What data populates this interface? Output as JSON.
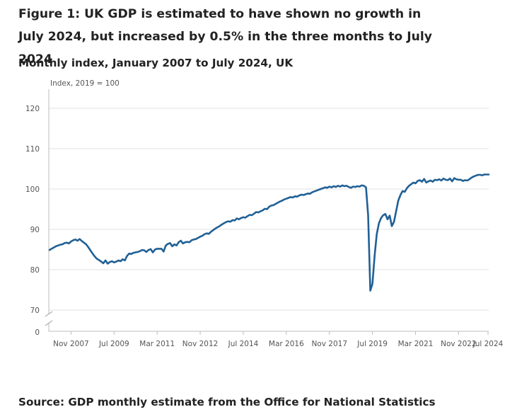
{
  "header": {
    "title": "Figure 1: UK GDP is estimated to have shown no growth in July 2024, but increased by 0.5% in the three months to July 2024",
    "subtitle": "Monthly index, January 2007 to July 2024, UK"
  },
  "footer": {
    "source": "Source: GDP monthly estimate from the Office for National Statistics"
  },
  "colors": {
    "line": "#206095",
    "grid": "#e0e0e0",
    "axis": "#bebebe"
  },
  "chart_data": {
    "type": "line",
    "title": "Figure 1: UK GDP is estimated to have shown no growth in July 2024, but increased by 0.5% in the three months to July 2024",
    "subtitle": "Monthly index, January 2007 to July 2024, UK",
    "ylabel": "Index, 2019 = 100",
    "xlabel": "",
    "ylim": [
      70,
      120
    ],
    "y_axis_break": true,
    "y_zero_label": "0",
    "yticks": [
      70,
      80,
      90,
      100,
      110,
      120
    ],
    "ytick_labels": [
      "70",
      "80",
      "90",
      "100",
      "110",
      "120"
    ],
    "xticks": [
      {
        "label": "Nov 2007",
        "month_index": 10
      },
      {
        "label": "Jul 2009",
        "month_index": 30
      },
      {
        "label": "Mar 2011",
        "month_index": 50
      },
      {
        "label": "Nov 2012",
        "month_index": 70
      },
      {
        "label": "Jul 2014",
        "month_index": 90
      },
      {
        "label": "Mar 2016",
        "month_index": 110
      },
      {
        "label": "Nov 2017",
        "month_index": 130
      },
      {
        "label": "Jul 2019",
        "month_index": 150
      },
      {
        "label": "Mar 2021",
        "month_index": 170
      },
      {
        "label": "Nov 2022",
        "month_index": 190
      },
      {
        "label": "Jul 2024",
        "month_index": 210
      }
    ],
    "grid": true,
    "legend": "none",
    "series": [
      {
        "name": "GDP monthly index",
        "start": "Jan 2007",
        "frequency": "monthly",
        "values": [
          84.9,
          85.2,
          85.5,
          85.8,
          86.0,
          86.2,
          86.3,
          86.6,
          86.7,
          86.5,
          87.0,
          87.3,
          87.5,
          87.2,
          87.6,
          87.1,
          86.7,
          86.3,
          85.6,
          84.8,
          84.0,
          83.3,
          82.7,
          82.4,
          82.0,
          81.6,
          82.3,
          81.5,
          81.9,
          82.1,
          81.8,
          82.0,
          82.3,
          82.1,
          82.6,
          82.3,
          83.4,
          84.0,
          83.9,
          84.2,
          84.3,
          84.4,
          84.6,
          84.9,
          84.8,
          84.4,
          84.9,
          85.1,
          84.3,
          85.0,
          85.2,
          85.2,
          85.2,
          84.5,
          86.0,
          86.4,
          86.6,
          85.8,
          86.3,
          86.0,
          86.8,
          87.2,
          86.5,
          86.8,
          86.9,
          86.8,
          87.3,
          87.5,
          87.6,
          87.9,
          88.2,
          88.4,
          88.8,
          89.0,
          88.9,
          89.4,
          89.8,
          90.2,
          90.5,
          90.8,
          91.2,
          91.5,
          91.8,
          92.0,
          91.9,
          92.3,
          92.2,
          92.7,
          92.5,
          92.8,
          93.0,
          92.9,
          93.3,
          93.6,
          93.5,
          93.9,
          94.3,
          94.2,
          94.5,
          94.7,
          95.1,
          95.0,
          95.6,
          95.9,
          96.0,
          96.3,
          96.6,
          96.9,
          97.1,
          97.4,
          97.6,
          97.8,
          98.0,
          97.9,
          98.2,
          98.1,
          98.4,
          98.6,
          98.5,
          98.7,
          98.9,
          98.8,
          99.2,
          99.4,
          99.6,
          99.8,
          100.0,
          100.2,
          100.4,
          100.3,
          100.6,
          100.4,
          100.7,
          100.5,
          100.8,
          100.6,
          100.9,
          100.7,
          100.8,
          100.5,
          100.3,
          100.6,
          100.5,
          100.7,
          100.6,
          100.9,
          100.8,
          100.4,
          93.5,
          74.8,
          76.5,
          83.5,
          88.8,
          91.5,
          92.8,
          93.5,
          93.8,
          92.5,
          93.4,
          90.8,
          91.9,
          94.5,
          97.1,
          98.5,
          99.5,
          99.3,
          100.2,
          100.8,
          101.2,
          101.6,
          101.4,
          102.0,
          102.2,
          101.8,
          102.5,
          101.6,
          101.9,
          102.1,
          101.8,
          102.3,
          102.2,
          102.4,
          102.1,
          102.6,
          102.3,
          102.2,
          102.6,
          101.9,
          102.7,
          102.4,
          102.3,
          102.3,
          102.0,
          102.2,
          102.1,
          102.4,
          102.8,
          103.1,
          103.3,
          103.5,
          103.5,
          103.4,
          103.6,
          103.6,
          103.6
        ]
      }
    ]
  }
}
